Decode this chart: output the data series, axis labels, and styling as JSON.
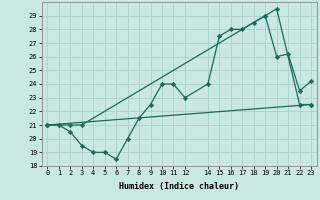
{
  "xlabel": "Humidex (Indice chaleur)",
  "background_color": "#c8e8e0",
  "grid_color": "#b0d4cc",
  "line_color": "#1a6b5a",
  "xlim": [
    -0.5,
    23.5
  ],
  "ylim": [
    18,
    30
  ],
  "xticks": [
    0,
    1,
    2,
    3,
    4,
    5,
    6,
    7,
    8,
    9,
    10,
    11,
    12,
    14,
    15,
    16,
    17,
    18,
    19,
    20,
    21,
    22,
    23
  ],
  "yticks": [
    18,
    19,
    20,
    21,
    22,
    23,
    24,
    25,
    26,
    27,
    28,
    29
  ],
  "series": [
    {
      "x": [
        0,
        1,
        2,
        3,
        4,
        5,
        6,
        7,
        8,
        9,
        10,
        11,
        12,
        14,
        15,
        16,
        17,
        18,
        19,
        20,
        21,
        22,
        23
      ],
      "y": [
        21,
        21,
        20.5,
        19.5,
        19,
        19,
        18.5,
        20,
        21.5,
        22.5,
        24,
        24,
        23,
        24,
        27.5,
        28,
        28,
        28.5,
        29,
        26,
        26.2,
        23.5,
        24.2
      ]
    },
    {
      "x": [
        0,
        2,
        3,
        19,
        20,
        22,
        23
      ],
      "y": [
        21,
        21,
        21,
        29,
        29.5,
        22.5,
        22.5
      ]
    },
    {
      "x": [
        0,
        23
      ],
      "y": [
        21,
        22.5
      ]
    }
  ]
}
